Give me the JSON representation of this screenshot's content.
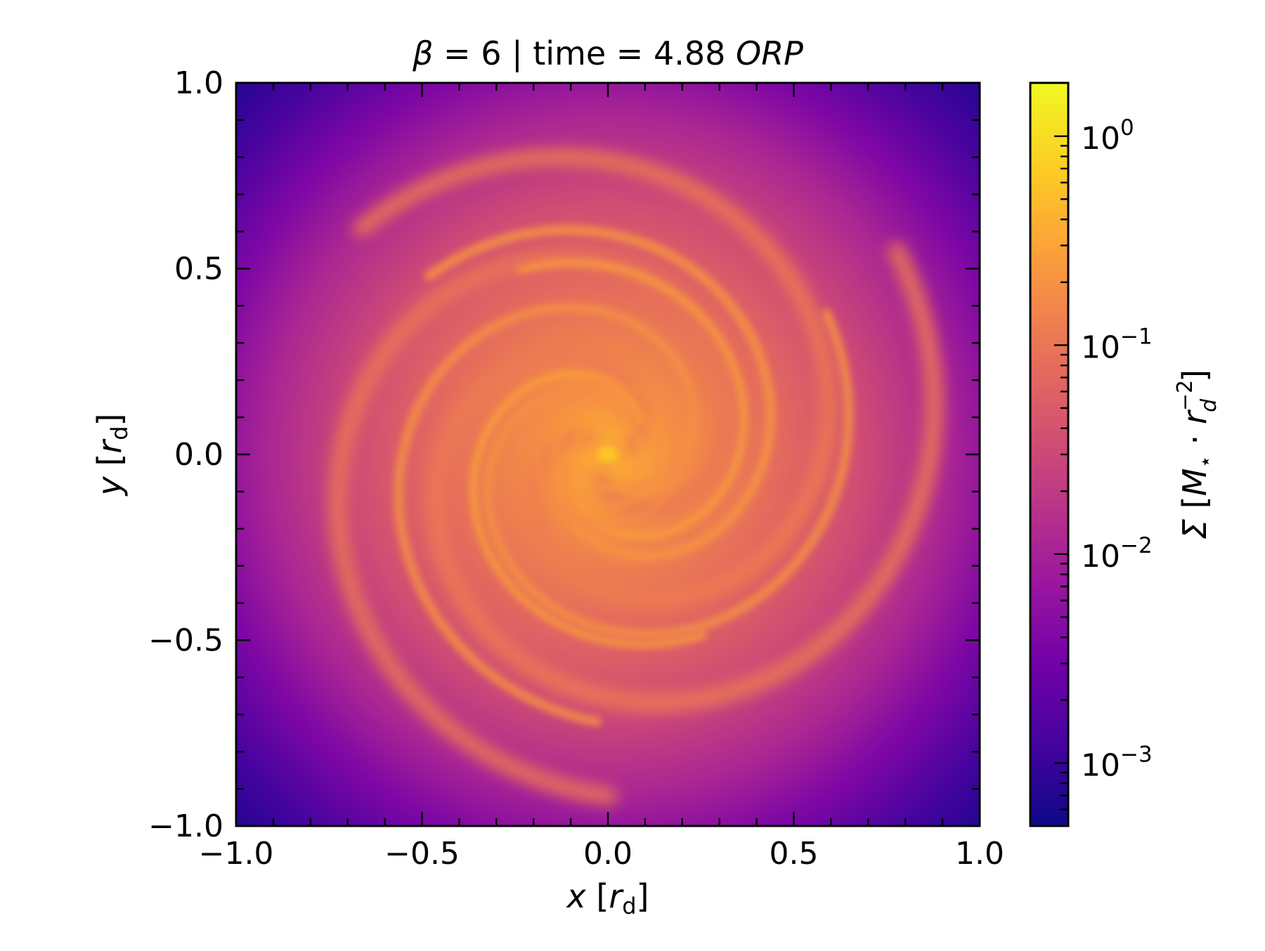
{
  "chart_data": {
    "type": "heatmap",
    "title": {
      "beta_symbol": "β",
      "middle": " = 6 | time = 4.88 ",
      "unit_italic": "ORP"
    },
    "xlabel": {
      "var": "x",
      "open": " [",
      "r": "r",
      "sub": "d",
      "close": "]"
    },
    "ylabel": {
      "var": "y",
      "open": " [",
      "r": "r",
      "sub": "d",
      "close": "]"
    },
    "xlim": [
      -1.0,
      1.0
    ],
    "ylim": [
      -1.0,
      1.0
    ],
    "x_ticks": [
      -1.0,
      -0.5,
      0.0,
      0.5,
      1.0
    ],
    "y_ticks": [
      -1.0,
      -0.5,
      0.0,
      0.5,
      1.0
    ],
    "x_tick_labels": [
      "−1.0",
      "−0.5",
      "0.0",
      "0.5",
      "1.0"
    ],
    "y_tick_labels": [
      "−1.0",
      "−0.5",
      "0.0",
      "0.5",
      "1.0"
    ],
    "minor_tick_step": 0.1,
    "grid": false,
    "colormap": "plasma",
    "colorbar": {
      "label": "Σ [M⋆ · r_d^−2]",
      "label_parts": {
        "sigma": "Σ",
        "open": " [",
        "M": "M",
        "Msub": "⋆",
        "dot": " · ",
        "r": "r",
        "rsub": "d",
        "rsup": "−2",
        "close": "]"
      },
      "scale": "log",
      "range": [
        0.0005,
        1.8
      ],
      "ticks": [
        0.001,
        0.01,
        0.1,
        1
      ],
      "tick_labels": [
        {
          "base": "10",
          "exp": "−3"
        },
        {
          "base": "10",
          "exp": "−2"
        },
        {
          "base": "10",
          "exp": "−1"
        },
        {
          "base": "10",
          "exp": "0"
        }
      ]
    },
    "field_description": {
      "center_value": 0.5,
      "edge_value": 0.002,
      "corner_value": 0.0006,
      "spiral_arm_value": 0.2
    }
  },
  "colors": {
    "plasma": [
      "#0d0887",
      "#46039f",
      "#7201a8",
      "#9c179e",
      "#bd3786",
      "#d8576b",
      "#ed7953",
      "#fb9f3a",
      "#fdca26",
      "#f0f921"
    ]
  }
}
